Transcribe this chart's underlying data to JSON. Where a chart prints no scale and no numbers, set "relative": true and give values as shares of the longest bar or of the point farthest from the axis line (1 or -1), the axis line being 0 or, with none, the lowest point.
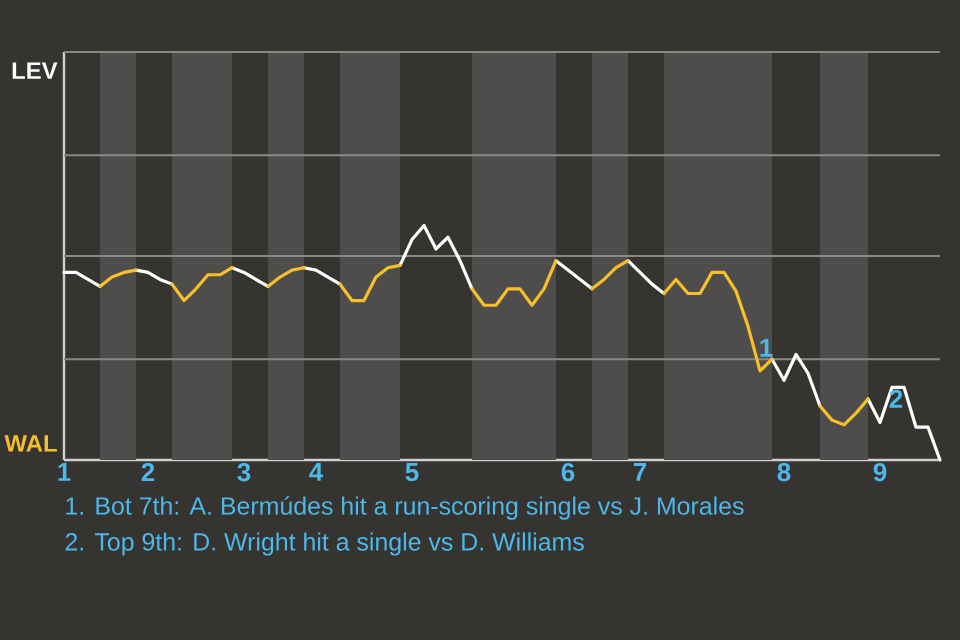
{
  "chart_data": {
    "type": "line",
    "relative": true,
    "categories": [
      "1",
      null,
      null,
      null,
      null,
      null,
      null,
      "2",
      null,
      null,
      null,
      null,
      null,
      null,
      null,
      "3",
      null,
      null,
      null,
      null,
      null,
      "4",
      null,
      null,
      null,
      null,
      null,
      null,
      null,
      "5",
      null,
      null,
      null,
      null,
      null,
      null,
      null,
      null,
      null,
      null,
      null,
      null,
      "6",
      null,
      null,
      null,
      null,
      null,
      "7",
      null,
      null,
      null,
      null,
      null,
      null,
      null,
      null,
      null,
      null,
      null,
      "8",
      null,
      null,
      null,
      null,
      null,
      null,
      null,
      "9",
      null,
      null,
      null,
      null,
      null
    ],
    "ref_lines": [
      {
        "axis": "y",
        "value": 0.43,
        "color": "#8a8886"
      },
      {
        "axis": "y",
        "value": 0.87,
        "color": "#8a8886"
      },
      {
        "axis": "y",
        "value": 1.3,
        "color": "#8a8886"
      },
      {
        "axis": "y",
        "value": 1.74,
        "color": "#8a8886"
      }
    ],
    "series": [
      {
        "color": "#ffffff",
        "values": [
          0.8,
          0.8,
          0.77,
          0.74,
          null,
          null,
          0.81,
          0.8,
          0.77,
          0.75,
          null,
          null,
          null,
          null,
          0.82,
          0.8,
          0.77,
          0.74,
          null,
          null,
          0.82,
          0.81,
          0.78,
          0.75,
          null,
          null,
          null,
          null,
          0.83,
          0.94,
          1,
          0.9,
          0.95,
          0.85,
          0.73,
          null,
          null,
          null,
          null,
          null,
          null,
          0.85,
          0.81,
          0.77,
          0.73,
          null,
          null,
          0.85,
          0.8,
          0.75,
          0.71,
          null,
          null,
          null,
          null,
          null,
          null,
          null,
          null,
          0.43,
          0.34,
          0.45,
          0.37,
          0.23,
          null,
          null,
          null,
          0.26,
          0.16,
          0.31,
          0.31,
          0.14,
          0.14,
          0
        ]
      },
      {
        "color": "#f5c02a",
        "values": [
          null,
          null,
          null,
          0.74,
          0.78,
          0.8,
          0.81,
          null,
          null,
          0.75,
          0.68,
          0.73,
          0.79,
          0.79,
          0.82,
          null,
          null,
          0.74,
          0.78,
          0.81,
          0.82,
          null,
          null,
          0.75,
          0.68,
          0.68,
          0.78,
          0.82,
          0.83,
          null,
          null,
          null,
          null,
          null,
          0.73,
          0.66,
          0.66,
          0.73,
          0.73,
          0.66,
          0.73,
          0.85,
          null,
          null,
          0.73,
          0.77,
          0.82,
          0.85,
          null,
          null,
          0.71,
          0.77,
          0.71,
          0.71,
          0.8,
          0.8,
          0.72,
          0.57,
          0.38,
          0.43,
          null,
          null,
          null,
          0.23,
          0.17,
          0.15,
          0.2,
          0.26,
          null,
          null,
          null,
          null,
          null,
          null
        ]
      }
    ],
    "annotations": [
      "LEV",
      "WAL",
      {
        "text": "1",
        "y": 0.43
      },
      {
        "text": "2",
        "y": 0.31
      },
      "1. Bot 7th: A. Bermúdes hit a run-scoring single vs J. Morales",
      "2. Top 9th: D. Wright hit a single vs D. Williams"
    ]
  }
}
